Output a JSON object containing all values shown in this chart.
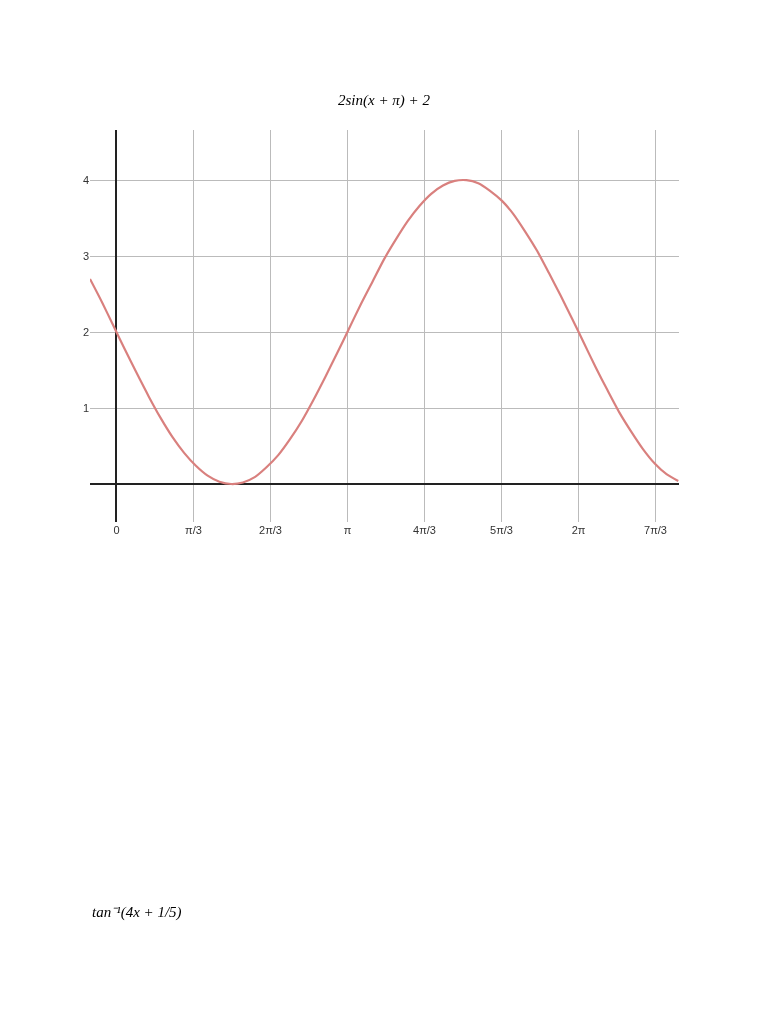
{
  "chart_data": {
    "type": "line",
    "title": "2sin(x + π) + 2",
    "annotations": [
      "tan⁻¹(4x + 1/5)"
    ],
    "x": [
      -0.36,
      -0.2,
      -0.04,
      0.12,
      0.28,
      0.44,
      0.6,
      0.76,
      0.92,
      1.08,
      1.24,
      1.4,
      1.56,
      1.72,
      1.88,
      2.04,
      2.2,
      2.36,
      2.52,
      2.68,
      2.84,
      3.0,
      3.16,
      3.32,
      3.48,
      3.64,
      3.8,
      3.96,
      4.12,
      4.28,
      4.44,
      4.6,
      4.76,
      4.92,
      5.08,
      5.24,
      5.4,
      5.56,
      5.72,
      5.88,
      6.04,
      6.2,
      6.36,
      6.52,
      6.68,
      6.84,
      7.0,
      7.16,
      7.32,
      7.48,
      7.64
    ],
    "series": [
      {
        "color": "#d9807e",
        "values": [
          2.7,
          2.4,
          2.08,
          1.76,
          1.45,
          1.15,
          0.87,
          0.62,
          0.41,
          0.24,
          0.11,
          0.03,
          0.0,
          0.02,
          0.09,
          0.22,
          0.38,
          0.59,
          0.83,
          1.11,
          1.41,
          1.72,
          2.04,
          2.36,
          2.66,
          2.96,
          3.22,
          3.46,
          3.66,
          3.82,
          3.93,
          3.99,
          4.0,
          3.96,
          3.86,
          3.73,
          3.55,
          3.32,
          3.07,
          2.78,
          2.48,
          2.17,
          1.85,
          1.53,
          1.23,
          0.94,
          0.69,
          0.46,
          0.27,
          0.13,
          0.04
        ]
      }
    ],
    "xlim": [
      -0.36,
      7.65
    ],
    "ylim": [
      -0.5,
      4.66
    ],
    "xticks": [
      {
        "value": 0,
        "label": "0"
      },
      {
        "value": 1.0472,
        "label": "π/3"
      },
      {
        "value": 2.0944,
        "label": "2π/3"
      },
      {
        "value": 3.1416,
        "label": "π"
      },
      {
        "value": 4.1888,
        "label": "4π/3"
      },
      {
        "value": 5.236,
        "label": "5π/3"
      },
      {
        "value": 6.2832,
        "label": "2π"
      },
      {
        "value": 7.3304,
        "label": "7π/3"
      }
    ],
    "yticks": [
      {
        "value": 0,
        "label": null
      },
      1,
      2,
      3,
      4
    ],
    "grid": true,
    "marker": "none",
    "line_style": "solid"
  }
}
